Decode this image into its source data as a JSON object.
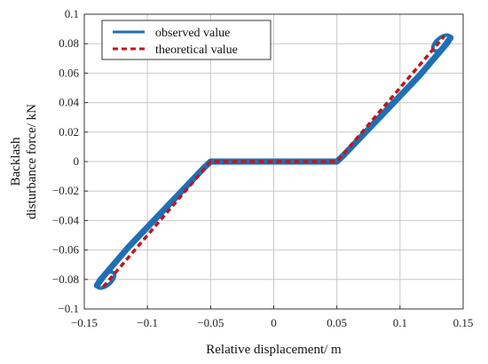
{
  "chart_data": {
    "type": "line",
    "title": "",
    "xlabel": "Relative displacement/ m",
    "ylabel_lines": [
      "Backlash",
      "disturbance force/ kN"
    ],
    "xlim": [
      -0.15,
      0.15
    ],
    "ylim": [
      -0.1,
      0.1
    ],
    "grid": true,
    "legend_position": "top-left",
    "x_ticks": [
      -0.15,
      -0.1,
      -0.05,
      0,
      0.05,
      0.1,
      0.15
    ],
    "x_tick_labels": [
      "−0.15",
      "−0.1",
      "−0.05",
      "0",
      "0.05",
      "0.1",
      "0.15"
    ],
    "y_ticks": [
      -0.1,
      -0.08,
      -0.06,
      -0.04,
      -0.02,
      0,
      0.02,
      0.04,
      0.06,
      0.08,
      0.1
    ],
    "y_tick_labels": [
      "−0.1",
      "−0.08",
      "−0.06",
      "−0.04",
      "−0.02",
      "0",
      "0.02",
      "0.04",
      "0.06",
      "0.08",
      "0.1"
    ],
    "series": [
      {
        "name": "observed value",
        "style": "solid",
        "color": "#1f6fb4",
        "x": [
          -0.14,
          -0.135,
          -0.125,
          -0.115,
          -0.105,
          -0.095,
          -0.085,
          -0.075,
          -0.065,
          -0.055,
          -0.05,
          -0.04,
          -0.02,
          0,
          0.02,
          0.04,
          0.05,
          0.055,
          0.065,
          0.075,
          0.085,
          0.095,
          0.105,
          0.115,
          0.125,
          0.135,
          0.14
        ],
        "y": [
          -0.084,
          -0.078,
          -0.068,
          -0.058,
          -0.049,
          -0.04,
          -0.031,
          -0.022,
          -0.013,
          -0.004,
          0,
          0,
          0,
          0,
          0,
          0,
          0,
          0.004,
          0.013,
          0.022,
          0.031,
          0.04,
          0.049,
          0.058,
          0.068,
          0.078,
          0.084
        ]
      },
      {
        "name": "theoretical value",
        "style": "dashed",
        "color": "#c0151f",
        "x": [
          -0.135,
          -0.05,
          0.05,
          0.135
        ],
        "y": [
          -0.085,
          0,
          0,
          0.085
        ]
      }
    ]
  }
}
